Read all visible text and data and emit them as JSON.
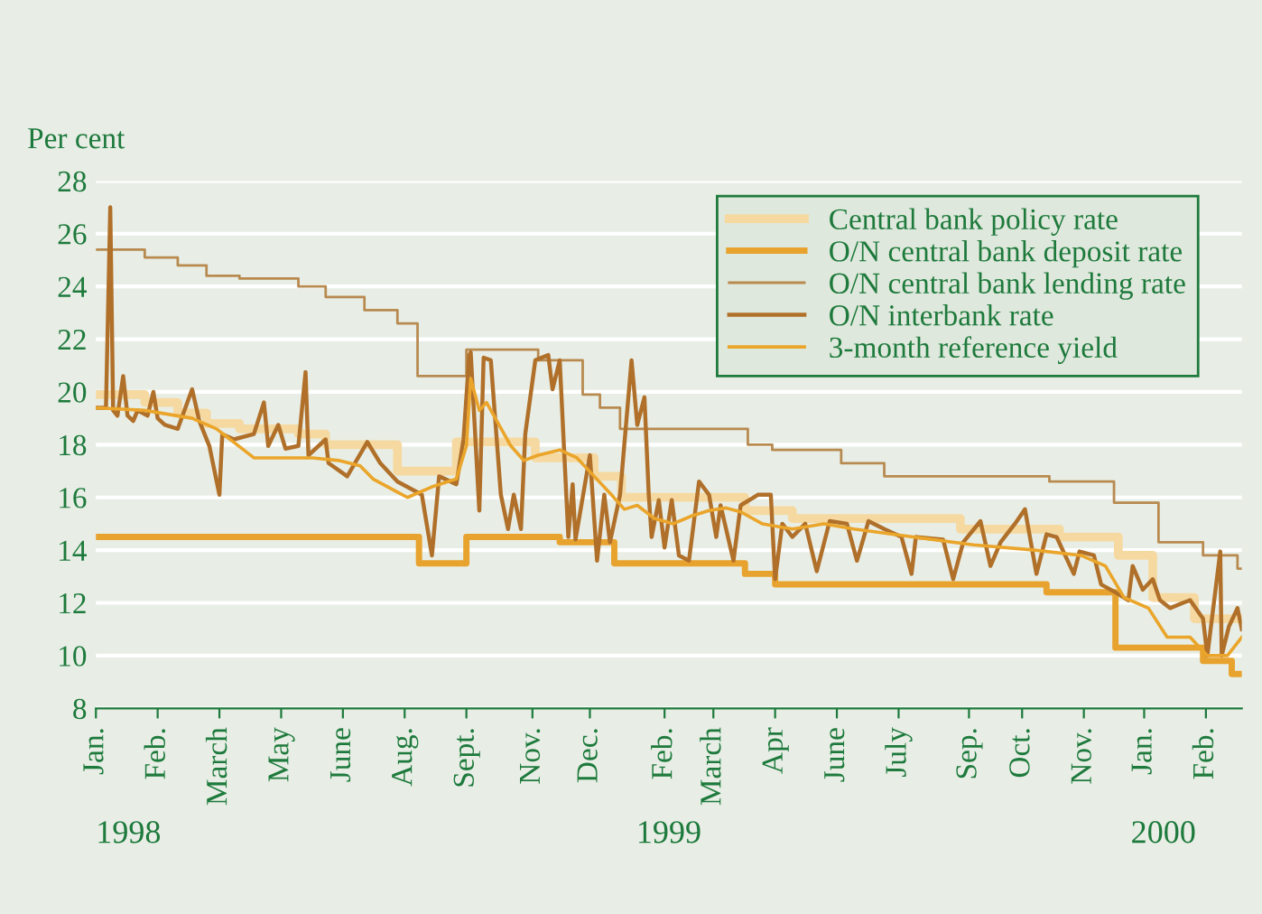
{
  "chart_data": {
    "type": "line",
    "ylabel": "Per cent",
    "xlim": [
      "1998-01-01",
      "2000-03-09"
    ],
    "ylim": [
      8,
      28
    ],
    "yticks": [
      8,
      10,
      12,
      14,
      16,
      18,
      20,
      22,
      24,
      26,
      28
    ],
    "xticks": [
      {
        "value": "1998-01-01",
        "label": "Jan."
      },
      {
        "value": "1998-02-13",
        "label": "Feb."
      },
      {
        "value": "1998-03-28",
        "label": "March"
      },
      {
        "value": "1998-05-10",
        "label": "May"
      },
      {
        "value": "1998-06-22",
        "label": "June"
      },
      {
        "value": "1998-08-04",
        "label": "Aug."
      },
      {
        "value": "1998-09-16",
        "label": "Sept."
      },
      {
        "value": "1998-11-01",
        "label": "Nov."
      },
      {
        "value": "1998-12-11",
        "label": "Dec."
      },
      {
        "value": "1999-02-01",
        "label": "Feb."
      },
      {
        "value": "1999-03-07",
        "label": "March"
      },
      {
        "value": "1999-04-19",
        "label": "Apr"
      },
      {
        "value": "1999-06-01",
        "label": "June"
      },
      {
        "value": "1999-07-14",
        "label": "July"
      },
      {
        "value": "1999-09-01",
        "label": "Sep."
      },
      {
        "value": "1999-10-08",
        "label": "Oct."
      },
      {
        "value": "1999-11-20",
        "label": "Nov."
      },
      {
        "value": "2000-01-01",
        "label": "Jan."
      },
      {
        "value": "2000-02-13",
        "label": "Feb."
      }
    ],
    "annotations": [
      "1998",
      "1999",
      "2000"
    ],
    "grid": "y",
    "legend": "top right",
    "marker": "none",
    "line_style": "solid",
    "series": [
      {
        "name": "Central bank policy rate",
        "type": "step",
        "color": "#f5d9a0",
        "x": [
          "1998-01-01",
          "1998-02-04",
          "1998-02-27",
          "1998-03-19",
          "1998-04-11",
          "1998-05-22",
          "1998-06-10",
          "1998-07-30",
          "1998-09-09",
          "1998-11-03",
          "1998-12-14",
          "1999-01-02",
          "1999-03-29",
          "1999-05-01",
          "1999-08-26",
          "1999-11-03",
          "1999-12-14",
          "2000-01-07",
          "2000-02-05",
          "2000-03-09"
        ],
        "values": [
          19.9,
          19.6,
          19.2,
          18.8,
          18.6,
          18.4,
          18.0,
          17.0,
          18.1,
          17.5,
          16.8,
          16.0,
          15.5,
          15.2,
          14.8,
          14.5,
          13.8,
          12.2,
          11.4,
          11.4
        ]
      },
      {
        "name": "O/N central bank deposit rate",
        "type": "step",
        "color": "#e8a32e",
        "x": [
          "1998-01-01",
          "1998-08-14",
          "1998-09-16",
          "1998-11-20",
          "1998-12-28",
          "1999-03-29",
          "1999-04-19",
          "1999-10-25",
          "1999-12-12",
          "2000-02-11",
          "2000-03-02",
          "2000-03-09"
        ],
        "values": [
          14.5,
          13.5,
          14.5,
          14.3,
          13.5,
          13.1,
          12.7,
          12.4,
          10.3,
          9.8,
          9.3,
          9.3
        ]
      },
      {
        "name": "O/N central bank lending rate",
        "type": "step",
        "color": "#b88a50",
        "x": [
          "1998-01-01",
          "1998-02-04",
          "1998-02-27",
          "1998-03-19",
          "1998-04-11",
          "1998-05-22",
          "1998-06-10",
          "1998-07-07",
          "1998-07-30",
          "1998-08-13",
          "1998-09-16",
          "1998-11-05",
          "1998-12-06",
          "1998-12-18",
          "1999-01-01",
          "1999-03-31",
          "1999-04-17",
          "1999-06-04",
          "1999-07-04",
          "1999-10-27",
          "1999-12-11",
          "2000-01-11",
          "2000-02-11",
          "2000-03-06",
          "2000-03-09"
        ],
        "values": [
          25.4,
          25.1,
          24.8,
          24.4,
          24.3,
          24.0,
          23.6,
          23.1,
          22.6,
          20.6,
          21.6,
          21.2,
          19.9,
          19.4,
          18.6,
          18.0,
          17.8,
          17.3,
          16.8,
          16.6,
          15.8,
          14.3,
          13.8,
          13.3,
          13.3
        ]
      },
      {
        "name": "O/N interbank rate",
        "color": "#b0702a",
        "x": [
          "1998-01-01",
          "1998-01-08",
          "1998-01-11",
          "1998-01-13",
          "1998-01-16",
          "1998-01-20",
          "1998-01-23",
          "1998-01-27",
          "1998-01-30",
          "1998-02-06",
          "1998-02-10",
          "1998-02-13",
          "1998-02-18",
          "1998-02-27",
          "1998-03-09",
          "1998-03-14",
          "1998-03-21",
          "1998-03-28",
          "1998-03-30",
          "1998-04-07",
          "1998-04-21",
          "1998-04-28",
          "1998-05-01",
          "1998-05-08",
          "1998-05-13",
          "1998-05-22",
          "1998-05-27",
          "1998-05-29",
          "1998-06-10",
          "1998-06-12",
          "1998-06-25",
          "1998-07-09",
          "1998-07-18",
          "1998-07-30",
          "1998-08-16",
          "1998-08-23",
          "1998-08-28",
          "1998-09-09",
          "1998-09-14",
          "1998-09-18",
          "1998-09-19",
          "1998-09-25",
          "1998-09-28",
          "1998-10-03",
          "1998-10-10",
          "1998-10-15",
          "1998-10-19",
          "1998-10-24",
          "1998-10-27",
          "1998-11-03",
          "1998-11-12",
          "1998-11-15",
          "1998-11-20",
          "1998-11-26",
          "1998-11-29",
          "1998-12-01",
          "1998-12-11",
          "1998-12-16",
          "1998-12-21",
          "1998-12-25",
          "1999-01-01",
          "1999-01-09",
          "1999-01-13",
          "1999-01-18",
          "1999-01-21",
          "1999-01-23",
          "1999-01-28",
          "1999-02-01",
          "1999-02-06",
          "1999-02-11",
          "1999-02-18",
          "1999-02-25",
          "1999-03-04",
          "1999-03-09",
          "1999-03-12",
          "1999-03-21",
          "1999-03-26",
          "1999-04-07",
          "1999-04-16",
          "1999-04-19",
          "1999-04-24",
          "1999-05-01",
          "1999-05-10",
          "1999-05-18",
          "1999-05-27",
          "1999-06-08",
          "1999-06-15",
          "1999-06-23",
          "1999-07-04",
          "1999-07-16",
          "1999-07-23",
          "1999-07-26",
          "1999-08-14",
          "1999-08-21",
          "1999-08-28",
          "1999-09-09",
          "1999-09-16",
          "1999-09-23",
          "1999-10-03",
          "1999-10-10",
          "1999-10-18",
          "1999-10-25",
          "1999-11-01",
          "1999-11-13",
          "1999-11-17",
          "1999-11-27",
          "1999-12-02",
          "1999-12-12",
          "1999-12-21",
          "1999-12-24",
          "1999-12-31",
          "2000-01-07",
          "2000-01-12",
          "2000-01-19",
          "2000-01-28",
          "2000-02-02",
          "2000-02-11",
          "2000-02-14",
          "2000-02-23",
          "2000-02-24",
          "2000-02-29",
          "2000-03-06",
          "2000-03-09"
        ],
        "values": [
          19.4,
          19.4,
          27.0,
          19.3,
          19.1,
          20.6,
          19.1,
          18.9,
          19.3,
          19.1,
          20.0,
          19.0,
          18.75,
          18.6,
          20.1,
          18.9,
          17.95,
          16.1,
          18.4,
          18.2,
          18.4,
          19.6,
          17.95,
          18.75,
          17.85,
          17.95,
          20.75,
          17.6,
          18.2,
          17.3,
          16.8,
          18.1,
          17.3,
          16.6,
          16.1,
          13.8,
          16.8,
          16.5,
          18.2,
          21.4,
          21.5,
          15.5,
          21.3,
          21.2,
          16.1,
          14.8,
          16.1,
          14.8,
          18.4,
          21.2,
          21.4,
          20.1,
          21.2,
          14.5,
          16.5,
          14.4,
          17.6,
          13.6,
          16.1,
          14.3,
          16.1,
          21.2,
          18.75,
          19.8,
          16.1,
          14.5,
          15.9,
          14.1,
          15.9,
          13.8,
          13.6,
          16.6,
          16.1,
          14.5,
          15.7,
          13.6,
          15.7,
          16.1,
          16.1,
          12.9,
          15.0,
          14.5,
          15.0,
          13.2,
          15.1,
          15.0,
          13.6,
          15.1,
          14.8,
          14.5,
          13.1,
          14.5,
          14.4,
          12.9,
          14.3,
          15.1,
          13.4,
          14.3,
          15.0,
          15.55,
          13.1,
          14.6,
          14.5,
          13.1,
          13.95,
          13.8,
          12.7,
          12.4,
          12.1,
          13.4,
          12.5,
          12.9,
          12.1,
          11.8,
          12.0,
          12.1,
          11.4,
          10.0,
          13.95,
          10.0,
          11.1,
          11.8,
          11.0
        ]
      },
      {
        "name": "3-month reference yield",
        "color": "#eaa52a",
        "x": [
          "1998-01-01",
          "1998-02-04",
          "1998-03-09",
          "1998-03-26",
          "1998-04-21",
          "1998-06-01",
          "1998-06-19",
          "1998-07-04",
          "1998-07-13",
          "1998-07-30",
          "1998-08-06",
          "1998-08-23",
          "1998-09-09",
          "1998-09-16",
          "1998-09-19",
          "1998-09-25",
          "1998-09-30",
          "1998-10-17",
          "1998-10-26",
          "1998-11-05",
          "1998-11-20",
          "1998-12-02",
          "1998-12-14",
          "1998-12-26",
          "1999-01-04",
          "1999-01-13",
          "1999-01-25",
          "1999-02-07",
          "1999-02-20",
          "1999-03-04",
          "1999-03-16",
          "1999-03-26",
          "1999-04-10",
          "1999-05-01",
          "1999-05-23",
          "1999-06-13",
          "1999-07-24",
          "1999-09-04",
          "1999-10-17",
          "1999-11-18",
          "1999-12-05",
          "1999-12-18",
          "2000-01-04",
          "2000-01-17",
          "2000-02-02",
          "2000-02-14",
          "2000-02-28",
          "2000-03-09"
        ],
        "values": [
          19.4,
          19.3,
          19.0,
          18.6,
          17.5,
          17.5,
          17.4,
          17.2,
          16.7,
          16.2,
          16.0,
          16.4,
          16.7,
          17.95,
          20.5,
          19.3,
          19.6,
          17.95,
          17.4,
          17.6,
          17.8,
          17.5,
          16.8,
          16.1,
          15.55,
          15.7,
          15.2,
          15.0,
          15.3,
          15.5,
          15.6,
          15.45,
          15.0,
          14.8,
          15.0,
          14.8,
          14.5,
          14.2,
          14.0,
          13.8,
          13.4,
          12.2,
          11.8,
          10.7,
          10.7,
          10.0,
          10.0,
          10.7
        ]
      }
    ]
  }
}
